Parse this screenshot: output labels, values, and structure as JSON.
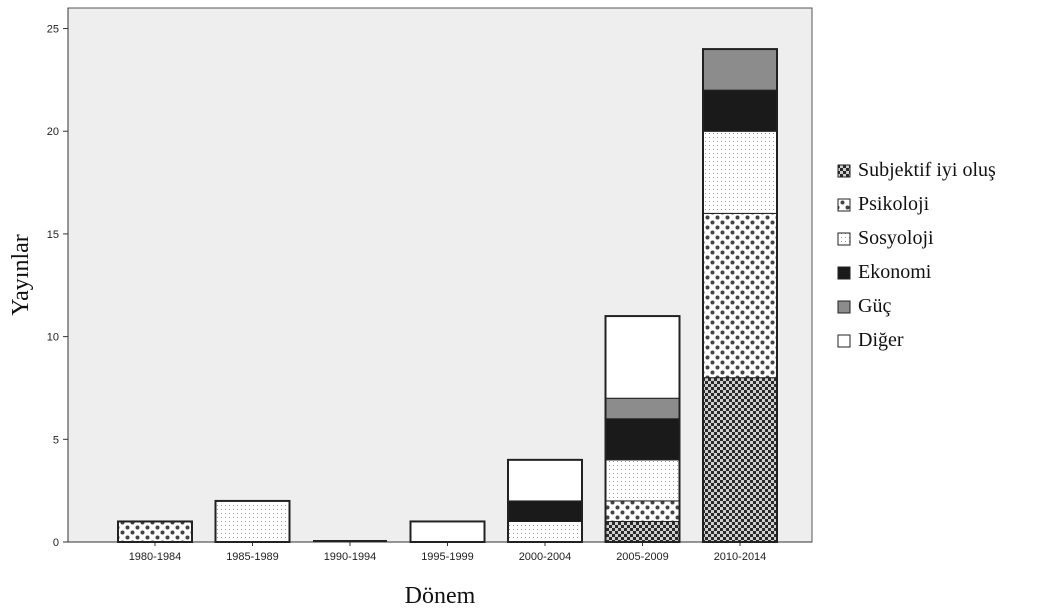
{
  "chart_data": {
    "type": "bar",
    "stacked": true,
    "xlabel": "Dönem",
    "ylabel": "Yayınlar",
    "ylim": [
      0,
      26
    ],
    "yticks": [
      0,
      5,
      10,
      15,
      20,
      25
    ],
    "categories": [
      "1980-1984",
      "1985-1989",
      "1990-1994",
      "1995-1999",
      "2000-2004",
      "2005-2009",
      "2010-2014"
    ],
    "legend_position": "right",
    "series": [
      {
        "name": "Subjektif iyi oluş",
        "pattern": "dense-checker",
        "values": [
          0,
          0,
          0,
          0,
          0,
          1,
          8
        ]
      },
      {
        "name": "Psikoloji",
        "pattern": "dots",
        "values": [
          1,
          0,
          0,
          0,
          0,
          1,
          8
        ]
      },
      {
        "name": "Sosyoloji",
        "pattern": "fine-dots",
        "values": [
          0,
          2,
          0,
          0,
          1,
          2,
          4
        ]
      },
      {
        "name": "Ekonomi",
        "pattern": "solid-dark",
        "color": "#1a1a1a",
        "values": [
          0,
          0,
          0,
          0,
          1,
          2,
          2
        ]
      },
      {
        "name": "Güç",
        "pattern": "solid-gray",
        "color": "#8c8c8c",
        "values": [
          0,
          0,
          0,
          0,
          0,
          1,
          2
        ]
      },
      {
        "name": "Diğer",
        "pattern": "white",
        "color": "#ffffff",
        "values": [
          0,
          0,
          0,
          1,
          2,
          4,
          0
        ]
      }
    ],
    "plot_background": "#eeeeee"
  }
}
